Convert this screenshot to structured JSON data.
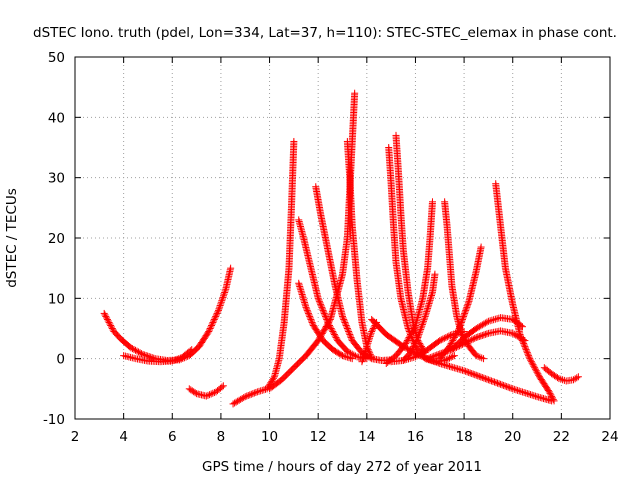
{
  "chart_data": {
    "type": "scatter",
    "title": "dSTEC Iono. truth (pdel, Lon=334, Lat=37, h=110): STEC-STEC_elemax in phase cont.",
    "xlabel": "GPS time / hours of day 272 of year 2011",
    "ylabel": "dSTEC  / TECUs",
    "xlim": [
      2,
      24
    ],
    "ylim": [
      -10,
      50
    ],
    "xticks": [
      "2",
      "4",
      "6",
      "8",
      "10",
      "12",
      "14",
      "16",
      "18",
      "20",
      "22",
      "24"
    ],
    "yticks": [
      "-10",
      "0",
      "10",
      "20",
      "30",
      "40",
      "50"
    ],
    "grid": true,
    "marker": "plus",
    "color": "#ff0000",
    "series": [
      {
        "x": [
          3.2,
          3.4,
          3.6,
          3.9,
          4.3,
          4.8,
          5.3,
          5.8,
          6.3,
          6.7,
          7.1,
          7.5,
          7.9,
          8.2,
          8.4
        ],
        "y": [
          7.5,
          6,
          4.5,
          3.2,
          1.8,
          0.7,
          0,
          -0.3,
          -0.2,
          0.5,
          2,
          4.5,
          8,
          11.5,
          15
        ]
      },
      {
        "x": [
          4.0,
          4.5,
          5.0,
          5.5,
          6.0,
          6.4,
          6.8
        ],
        "y": [
          0.5,
          0,
          -0.4,
          -0.5,
          -0.4,
          0.2,
          1.5
        ]
      },
      {
        "x": [
          6.7,
          7.0,
          7.4,
          7.8,
          8.1
        ],
        "y": [
          -5,
          -5.8,
          -6.2,
          -5.5,
          -4.5
        ]
      },
      {
        "x": [
          8.5,
          9.0,
          9.5,
          9.9,
          10.2,
          10.4,
          10.6,
          10.8,
          10.9,
          11.0
        ],
        "y": [
          -7.5,
          -6.3,
          -5.5,
          -5,
          -3,
          0,
          6,
          15,
          25,
          36
        ]
      },
      {
        "x": [
          10.0,
          10.5,
          11.0,
          11.5,
          12.0,
          12.5,
          13.0,
          13.2,
          13.3,
          13.4,
          13.5
        ],
        "y": [
          -5,
          -3.5,
          -1.5,
          0.5,
          3,
          6.5,
          14,
          20,
          28,
          36,
          44
        ]
      },
      {
        "x": [
          11.2,
          11.4,
          11.7,
          12.0,
          12.4,
          12.8,
          13.2,
          13.6,
          14.0
        ],
        "y": [
          23,
          20,
          15,
          10,
          6,
          3,
          1.2,
          0.3,
          0
        ]
      },
      {
        "x": [
          11.2,
          11.5,
          11.8,
          12.2,
          12.6,
          13.0,
          13.4
        ],
        "y": [
          12.5,
          8.5,
          5.5,
          3,
          1.5,
          0.5,
          0
        ]
      },
      {
        "x": [
          11.9,
          12.1,
          12.4,
          12.7,
          13.0,
          13.4,
          13.8,
          14.2,
          14.6,
          15.0
        ],
        "y": [
          28.5,
          24,
          18,
          12,
          7,
          3,
          1,
          0,
          -0.3,
          -0.2
        ]
      },
      {
        "x": [
          13.2,
          13.3,
          13.4,
          13.6,
          13.8,
          14.0,
          14.2
        ],
        "y": [
          36,
          30,
          22,
          13,
          6,
          2,
          0.2
        ]
      },
      {
        "x": [
          13.8,
          14.0,
          14.2,
          14.4
        ],
        "y": [
          -0.5,
          2,
          4.5,
          6
        ]
      },
      {
        "x": [
          14.9,
          15.0,
          15.1,
          15.2,
          15.4,
          15.7,
          16.0,
          16.4,
          16.8,
          17.2,
          17.6
        ],
        "y": [
          35,
          29,
          22,
          16,
          10,
          5,
          2,
          0,
          -0.5,
          -0.3,
          0.5
        ]
      },
      {
        "x": [
          15.2,
          15.3,
          15.4,
          15.5,
          15.7,
          15.9,
          16.1,
          16.4
        ],
        "y": [
          37,
          31,
          24,
          18,
          11,
          6,
          3,
          1
        ]
      },
      {
        "x": [
          14.8,
          15.2,
          15.6,
          16.0,
          16.3,
          16.5,
          16.6,
          16.7
        ],
        "y": [
          -0.8,
          0.5,
          2.5,
          5.5,
          10,
          15,
          20,
          26
        ]
      },
      {
        "x": [
          15.5,
          15.8,
          16.1,
          16.4,
          16.7,
          16.8
        ],
        "y": [
          -0.3,
          1,
          3.5,
          7,
          11,
          14
        ]
      },
      {
        "x": [
          17.2,
          17.3,
          17.4,
          17.5,
          17.7,
          17.9,
          18.2,
          18.5,
          18.8
        ],
        "y": [
          26,
          22,
          17,
          12,
          7,
          4,
          2,
          0.5,
          0
        ]
      },
      {
        "x": [
          17.0,
          17.4,
          17.8,
          18.2,
          18.5,
          18.7
        ],
        "y": [
          0,
          2,
          5,
          9.5,
          14.5,
          18.5
        ]
      },
      {
        "x": [
          19.3,
          19.5,
          19.7,
          20.0,
          20.3,
          20.7,
          21.1,
          21.5,
          21.7
        ],
        "y": [
          29,
          22,
          15,
          9,
          4,
          0,
          -3,
          -5.5,
          -7
        ]
      },
      {
        "x": [
          17.5,
          18.0,
          18.5,
          19.0,
          19.5,
          20.0,
          20.4
        ],
        "y": [
          1.5,
          3.5,
          5,
          6.2,
          6.8,
          6.5,
          5.3
        ]
      },
      {
        "x": [
          16.5,
          17.0,
          17.5,
          18.0,
          18.5,
          19.0,
          19.5,
          20.0,
          20.5
        ],
        "y": [
          0,
          0.8,
          1.5,
          2.5,
          3.5,
          4.2,
          4.6,
          4.2,
          3
        ]
      },
      {
        "x": [
          14.2,
          14.8,
          15.5,
          16.2,
          17.0,
          18.0,
          19.0,
          20.0,
          21.0,
          21.6
        ],
        "y": [
          6.5,
          4,
          2,
          0.5,
          -0.8,
          -2,
          -3.5,
          -5,
          -6.3,
          -7
        ]
      },
      {
        "x": [
          15.0,
          15.5,
          16.0,
          16.5,
          17.0,
          17.5,
          18.0
        ],
        "y": [
          -0.5,
          -0.3,
          0.3,
          1.5,
          3,
          4,
          4.5
        ]
      },
      {
        "x": [
          21.3,
          21.6,
          21.9,
          22.2,
          22.5,
          22.7
        ],
        "y": [
          -1.5,
          -2.5,
          -3.3,
          -3.7,
          -3.5,
          -3
        ]
      }
    ]
  }
}
